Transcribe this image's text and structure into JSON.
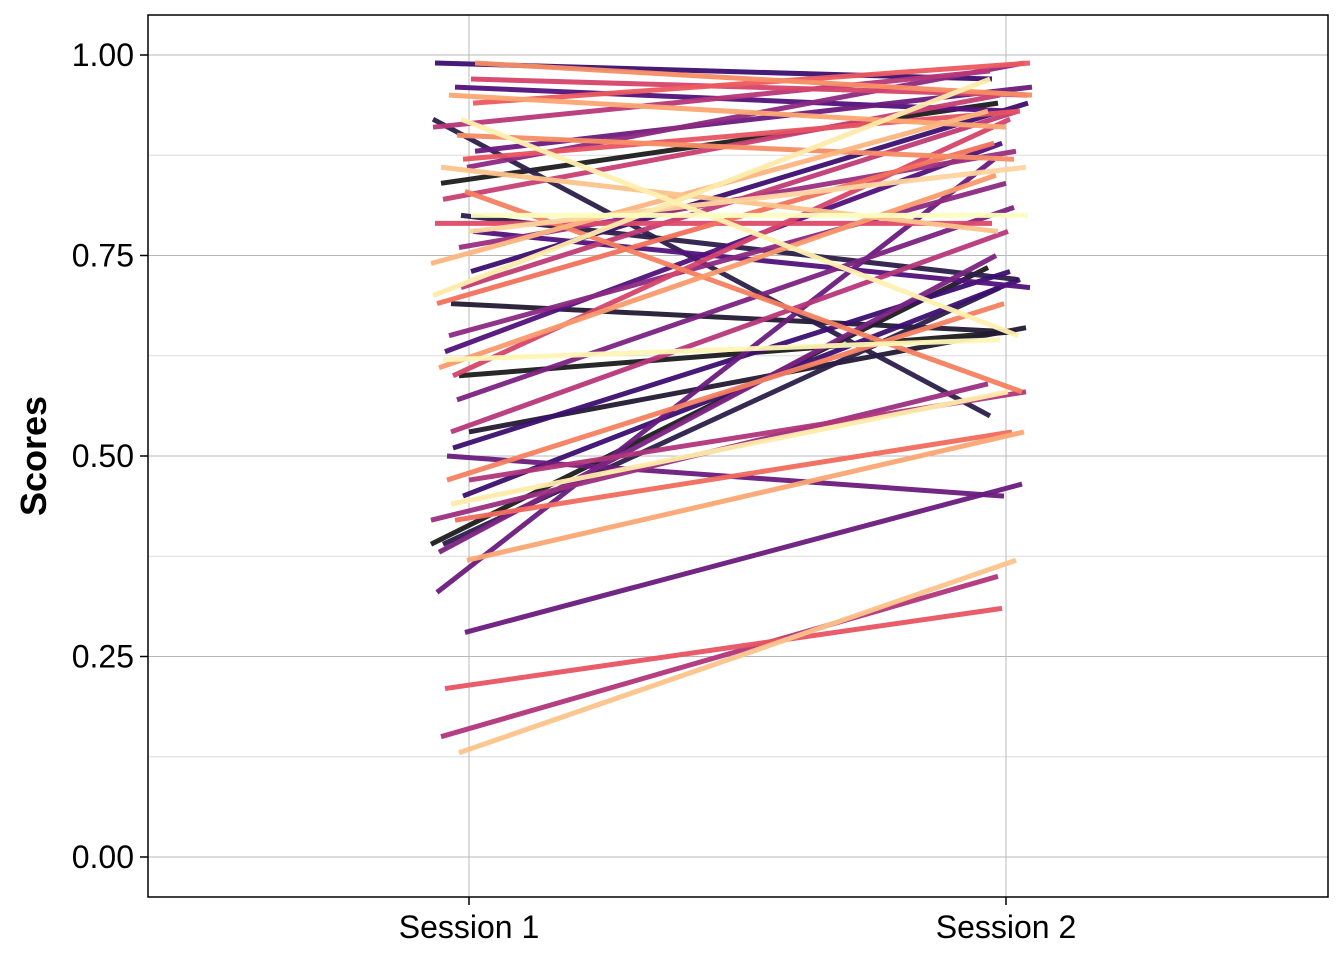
{
  "chart_data": {
    "type": "line",
    "title": "",
    "xlabel": "",
    "ylabel": "Scores",
    "categories": [
      "Session 1",
      "Session 2"
    ],
    "ylim": [
      -0.05,
      1.05
    ],
    "yticks": [
      "0.00",
      "0.25",
      "0.50",
      "0.75",
      "1.00"
    ],
    "ytick_values": [
      0,
      0.25,
      0.5,
      0.75,
      1.0
    ],
    "grid": true,
    "legend": "none",
    "palette": "magma",
    "series": [
      {
        "values": [
          0.39,
          0.735
        ],
        "color": "#1c1c1c"
      },
      {
        "values": [
          0.6,
          0.655
        ],
        "color": "#1c1c1c"
      },
      {
        "values": [
          0.84,
          0.94
        ],
        "color": "#1c1c1c"
      },
      {
        "values": [
          0.53,
          0.66
        ],
        "color": "#231a33"
      },
      {
        "values": [
          0.69,
          0.655
        ],
        "color": "#231a33"
      },
      {
        "values": [
          0.92,
          0.55
        ],
        "color": "#2b1f4a"
      },
      {
        "values": [
          0.8,
          0.72
        ],
        "color": "#2b1f4a"
      },
      {
        "values": [
          0.39,
          0.71
        ],
        "color": "#2b1f4a"
      },
      {
        "values": [
          0.73,
          0.94
        ],
        "color": "#3b0f70"
      },
      {
        "values": [
          0.51,
          0.73
        ],
        "color": "#3b0f70"
      },
      {
        "values": [
          0.99,
          0.97
        ],
        "color": "#3b0f70"
      },
      {
        "values": [
          0.45,
          0.72
        ],
        "color": "#3b0f70"
      },
      {
        "values": [
          0.63,
          0.89
        ],
        "color": "#51127c"
      },
      {
        "values": [
          0.78,
          0.71
        ],
        "color": "#51127c"
      },
      {
        "values": [
          0.96,
          0.93
        ],
        "color": "#51127c"
      },
      {
        "values": [
          0.33,
          0.87
        ],
        "color": "#6a1b7e"
      },
      {
        "values": [
          0.28,
          0.465
        ],
        "color": "#6a1b7e"
      },
      {
        "values": [
          0.5,
          0.45
        ],
        "color": "#6a1b7e"
      },
      {
        "values": [
          0.88,
          0.96
        ],
        "color": "#6a1b7e"
      },
      {
        "values": [
          0.57,
          0.81
        ],
        "color": "#7b2382"
      },
      {
        "values": [
          0.38,
          0.75
        ],
        "color": "#7b2382"
      },
      {
        "values": [
          0.86,
          0.99
        ],
        "color": "#8c2981"
      },
      {
        "values": [
          0.65,
          0.84
        ],
        "color": "#8c2981"
      },
      {
        "values": [
          0.42,
          0.59
        ],
        "color": "#9b2f7f"
      },
      {
        "values": [
          0.76,
          0.88
        ],
        "color": "#9b2f7f"
      },
      {
        "values": [
          0.15,
          0.35
        ],
        "color": "#b1357a"
      },
      {
        "values": [
          0.47,
          0.58
        ],
        "color": "#b1357a"
      },
      {
        "values": [
          0.53,
          0.78
        ],
        "color": "#b73779"
      },
      {
        "values": [
          0.91,
          0.98
        ],
        "color": "#b73779"
      },
      {
        "values": [
          0.71,
          0.93
        ],
        "color": "#c13b75"
      },
      {
        "values": [
          0.82,
          0.95
        ],
        "color": "#c83e73"
      },
      {
        "values": [
          0.97,
          0.95
        ],
        "color": "#d6456c"
      },
      {
        "values": [
          0.6,
          0.92
        ],
        "color": "#d6456c"
      },
      {
        "values": [
          0.79,
          0.79
        ],
        "color": "#de4968"
      },
      {
        "values": [
          0.87,
          0.93
        ],
        "color": "#e85362"
      },
      {
        "values": [
          0.21,
          0.31
        ],
        "color": "#e85362"
      },
      {
        "values": [
          0.94,
          0.99
        ],
        "color": "#ed5a5f"
      },
      {
        "values": [
          0.42,
          0.53
        ],
        "color": "#f06c5d"
      },
      {
        "values": [
          0.69,
          0.89
        ],
        "color": "#f1715c"
      },
      {
        "values": [
          0.83,
          0.58
        ],
        "color": "#f4805f"
      },
      {
        "values": [
          0.47,
          0.69
        ],
        "color": "#f4805f"
      },
      {
        "values": [
          0.99,
          0.95
        ],
        "color": "#f78d64"
      },
      {
        "values": [
          0.9,
          0.87
        ],
        "color": "#f78d64"
      },
      {
        "values": [
          0.61,
          0.85
        ],
        "color": "#f99a6b"
      },
      {
        "values": [
          0.37,
          0.53
        ],
        "color": "#fba772"
      },
      {
        "values": [
          0.95,
          0.91
        ],
        "color": "#fba772"
      },
      {
        "values": [
          0.74,
          0.93
        ],
        "color": "#fcb57e"
      },
      {
        "values": [
          0.13,
          0.37
        ],
        "color": "#fcc38a"
      },
      {
        "values": [
          0.86,
          0.78
        ],
        "color": "#fcc38a"
      },
      {
        "values": [
          0.78,
          0.86
        ],
        "color": "#fdd49e"
      },
      {
        "values": [
          0.44,
          0.58
        ],
        "color": "#feebaa"
      },
      {
        "values": [
          0.7,
          0.97
        ],
        "color": "#feebaa"
      },
      {
        "values": [
          0.92,
          0.65
        ],
        "color": "#fef0b0"
      },
      {
        "values": [
          0.62,
          0.645
        ],
        "color": "#fef6b5"
      },
      {
        "values": [
          0.8,
          0.8
        ],
        "color": "#fcfdbf"
      }
    ]
  }
}
